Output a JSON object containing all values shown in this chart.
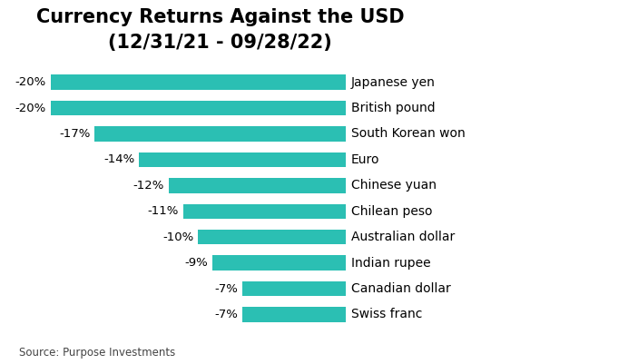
{
  "title": "Currency Returns Against the USD",
  "subtitle": "(12/31/21 - 09/28/22)",
  "source": "Source: Purpose Investments",
  "currencies": [
    "Japanese yen",
    "British pound",
    "South Korean won",
    "Euro",
    "Chinese yuan",
    "Chilean peso",
    "Australian dollar",
    "Indian rupee",
    "Canadian dollar",
    "Swiss franc"
  ],
  "values": [
    -20,
    -20,
    -17,
    -14,
    -12,
    -11,
    -10,
    -9,
    -7,
    -7
  ],
  "bar_color": "#2BBFB3",
  "background_color": "#FFFFFF",
  "title_fontsize": 15,
  "subtitle_fontsize": 12,
  "bar_label_fontsize": 9.5,
  "currency_label_fontsize": 10,
  "source_fontsize": 8.5,
  "xlim": [
    -23,
    6
  ]
}
